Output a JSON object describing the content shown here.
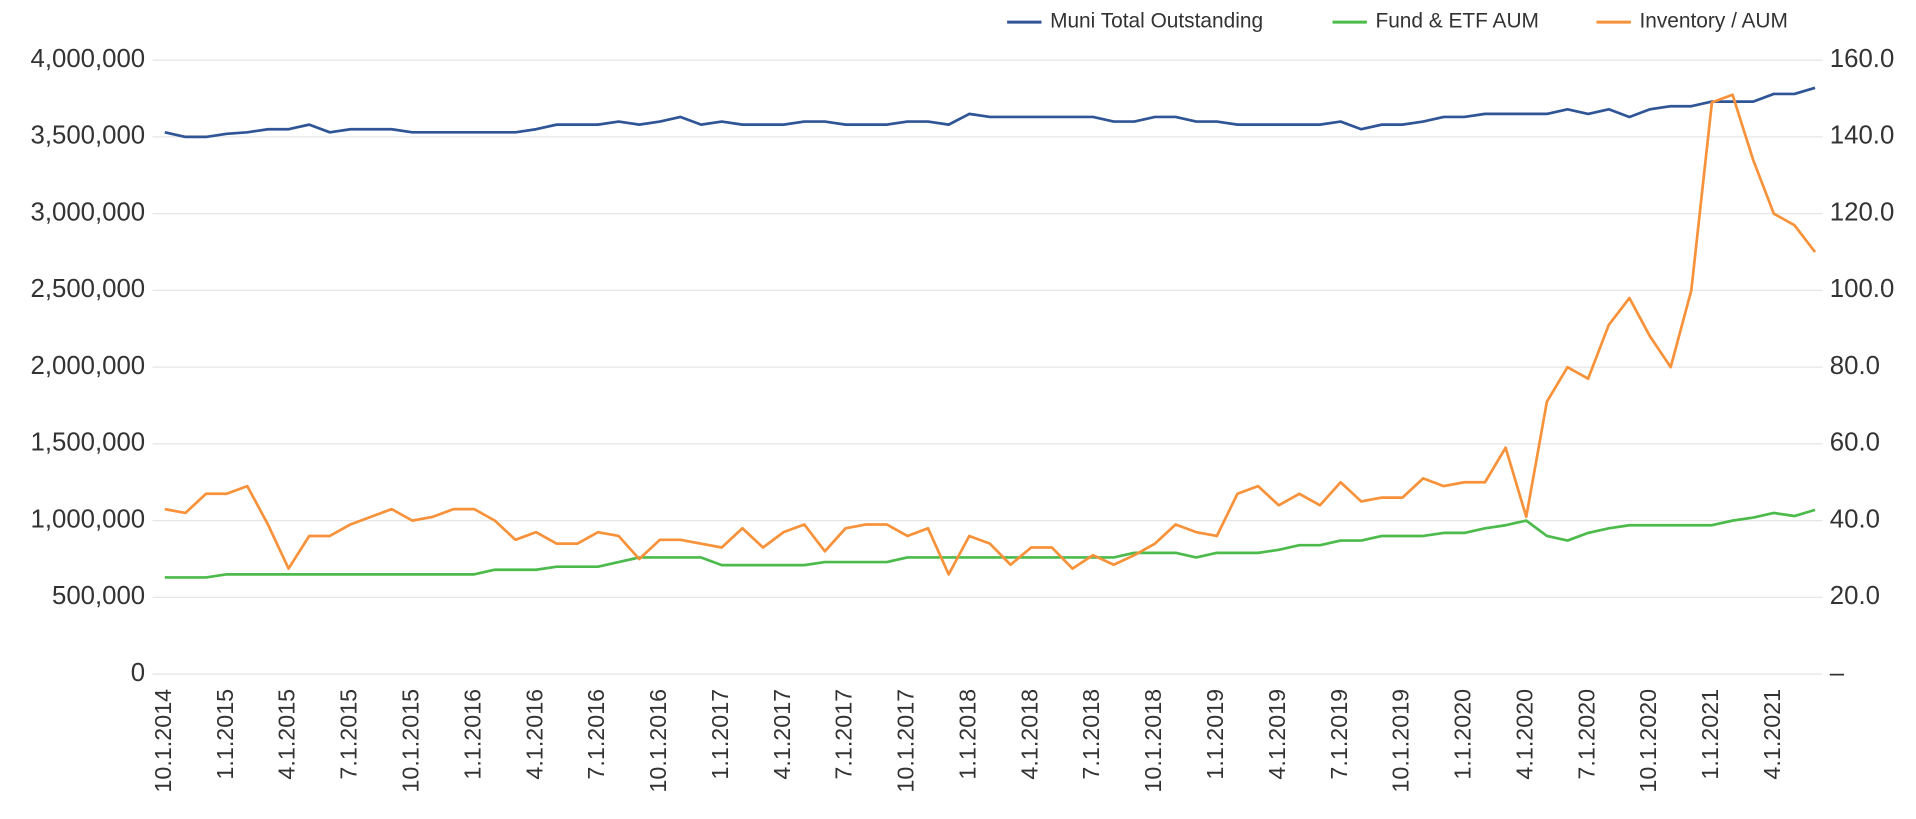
{
  "chart_data": {
    "type": "line",
    "categories": [
      "10.1.2014",
      null,
      null,
      "1.1.2015",
      null,
      null,
      "4.1.2015",
      null,
      null,
      "7.1.2015",
      null,
      null,
      "10.1.2015",
      null,
      null,
      "1.1.2016",
      null,
      null,
      "4.1.2016",
      null,
      null,
      "7.1.2016",
      null,
      null,
      "10.1.2016",
      null,
      null,
      "1.1.2017",
      null,
      null,
      "4.1.2017",
      null,
      null,
      "7.1.2017",
      null,
      null,
      "10.1.2017",
      null,
      null,
      "1.1.2018",
      null,
      null,
      "4.1.2018",
      null,
      null,
      "7.1.2018",
      null,
      null,
      "10.1.2018",
      null,
      null,
      "1.1.2019",
      null,
      null,
      "4.1.2019",
      null,
      null,
      "7.1.2019",
      null,
      null,
      "10.1.2019",
      null,
      null,
      "1.1.2020",
      null,
      null,
      "4.1.2020",
      null,
      null,
      "7.1.2020",
      null,
      null,
      "10.1.2020",
      null,
      null,
      "1.1.2021",
      null,
      null,
      "4.1.2021",
      null,
      null
    ],
    "series": [
      {
        "name": "Muni Total Outstanding",
        "color": "#2f5597",
        "axis": "y",
        "values": [
          3530000,
          3500000,
          3500000,
          3520000,
          3530000,
          3550000,
          3550000,
          3580000,
          3530000,
          3550000,
          3550000,
          3550000,
          3530000,
          3530000,
          3530000,
          3530000,
          3530000,
          3530000,
          3550000,
          3580000,
          3580000,
          3580000,
          3600000,
          3580000,
          3600000,
          3630000,
          3580000,
          3600000,
          3580000,
          3580000,
          3580000,
          3600000,
          3600000,
          3580000,
          3580000,
          3580000,
          3600000,
          3600000,
          3580000,
          3650000,
          3630000,
          3630000,
          3630000,
          3630000,
          3630000,
          3630000,
          3600000,
          3600000,
          3630000,
          3630000,
          3600000,
          3600000,
          3580000,
          3580000,
          3580000,
          3580000,
          3580000,
          3600000,
          3550000,
          3580000,
          3580000,
          3600000,
          3630000,
          3630000,
          3650000,
          3650000,
          3650000,
          3650000,
          3680000,
          3650000,
          3680000,
          3630000,
          3680000,
          3700000,
          3700000,
          3730000,
          3730000,
          3730000,
          3780000,
          3780000,
          3820000
        ]
      },
      {
        "name": "Fund & ETF AUM",
        "color": "#4cbb4c",
        "axis": "y",
        "values": [
          630000,
          630000,
          630000,
          650000,
          650000,
          650000,
          650000,
          650000,
          650000,
          650000,
          650000,
          650000,
          650000,
          650000,
          650000,
          650000,
          680000,
          680000,
          680000,
          700000,
          700000,
          700000,
          730000,
          760000,
          760000,
          760000,
          760000,
          710000,
          710000,
          710000,
          710000,
          710000,
          730000,
          730000,
          730000,
          730000,
          760000,
          760000,
          760000,
          760000,
          760000,
          760000,
          760000,
          760000,
          760000,
          760000,
          760000,
          790000,
          790000,
          790000,
          760000,
          790000,
          790000,
          790000,
          810000,
          840000,
          840000,
          870000,
          870000,
          900000,
          900000,
          900000,
          920000,
          920000,
          950000,
          970000,
          1000000,
          900000,
          870000,
          920000,
          950000,
          970000,
          970000,
          970000,
          970000,
          970000,
          1000000,
          1020000,
          1050000,
          1030000,
          1070000
        ]
      },
      {
        "name": "Inventory / AUM",
        "color": "#f7923a",
        "axis": "y2",
        "values": [
          43,
          42,
          47,
          47,
          49,
          39,
          27.5,
          36,
          36,
          39,
          41,
          43,
          40,
          41,
          43,
          43,
          40,
          35,
          37,
          34,
          34,
          37,
          36,
          30,
          35,
          35,
          34,
          33,
          38,
          33,
          37,
          39,
          32,
          38,
          39,
          39,
          36,
          38,
          26,
          36,
          34,
          28.5,
          33,
          33,
          27.5,
          31,
          28.5,
          31,
          34,
          39,
          37,
          36,
          47,
          49,
          44,
          47,
          44,
          50,
          45,
          46,
          46,
          51,
          49,
          50,
          50,
          59,
          41,
          71,
          80,
          77,
          91,
          98,
          88,
          80,
          100,
          149,
          151,
          134,
          120,
          117,
          110
        ]
      }
    ],
    "ylim": [
      0,
      4000000
    ],
    "yticks": [
      0,
      {
        "value": 500000,
        "label": "500,000"
      },
      {
        "value": 1000000,
        "label": "1,000,000"
      },
      {
        "value": 1500000,
        "label": "1,500,000"
      },
      {
        "value": 2000000,
        "label": "2,000,000"
      },
      {
        "value": 2500000,
        "label": "2,500,000"
      },
      {
        "value": 3000000,
        "label": "3,000,000"
      },
      {
        "value": 3500000,
        "label": "3,500,000"
      },
      {
        "value": 4000000,
        "label": "4,000,000"
      }
    ],
    "y2lim": [
      0,
      160
    ],
    "y2ticks": [
      {
        "value": 0,
        "label": "–"
      },
      {
        "value": 20,
        "label": "20.0"
      },
      {
        "value": 40,
        "label": "40.0"
      },
      {
        "value": 60,
        "label": "60.0"
      },
      {
        "value": 80,
        "label": "80.0"
      },
      {
        "value": 100,
        "label": "100.0"
      },
      {
        "value": 120,
        "label": "120.0"
      },
      {
        "value": 140,
        "label": "140.0"
      },
      {
        "value": 160,
        "label": "160.0"
      }
    ],
    "grid": true,
    "legend": "top-right"
  }
}
